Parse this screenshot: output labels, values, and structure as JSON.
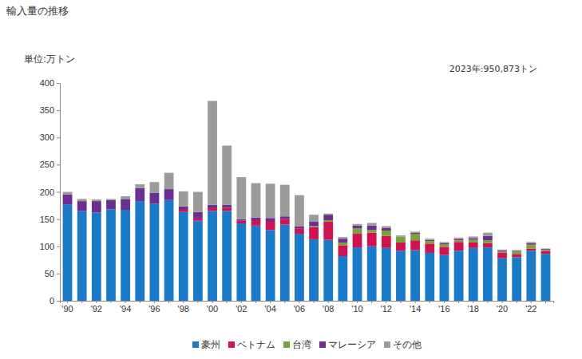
{
  "chart_data": {
    "type": "bar",
    "stacked": true,
    "title": "輸入量の推移",
    "y_label": "単位:万トン",
    "annotations": [
      "2023年:950,873トン"
    ],
    "categories": [
      "'90",
      null,
      "'92",
      null,
      "'94",
      null,
      "'96",
      null,
      "'98",
      null,
      "'00",
      null,
      "'02",
      null,
      "'04",
      null,
      "'06",
      null,
      "'08",
      null,
      "'10",
      null,
      "'12",
      null,
      "'14",
      null,
      "'16",
      null,
      "'18",
      null,
      "'20",
      null,
      "'22",
      null
    ],
    "series": [
      {
        "name": "豪州",
        "color": "#1a7ac8",
        "values": [
          177,
          165,
          162,
          168,
          167,
          183,
          178,
          185,
          163,
          147,
          165,
          165,
          142,
          138,
          130,
          140,
          123,
          113,
          112,
          82,
          98,
          100,
          97,
          92,
          93,
          88,
          84,
          92,
          97,
          98,
          78,
          80,
          92,
          86
        ]
      },
      {
        "name": "ベトナム",
        "color": "#d0134e",
        "values": [
          0,
          0,
          0,
          0,
          0,
          0,
          0,
          0,
          4,
          4,
          5,
          6,
          5,
          10,
          15,
          10,
          10,
          22,
          33,
          20,
          25,
          25,
          22,
          15,
          18,
          17,
          15,
          16,
          10,
          8,
          10,
          6,
          4,
          5
        ]
      },
      {
        "name": "台湾",
        "color": "#7aa23a",
        "values": [
          0,
          0,
          0,
          0,
          0,
          0,
          0,
          0,
          0,
          0,
          0,
          0,
          0,
          0,
          0,
          0,
          0,
          2,
          3,
          5,
          10,
          5,
          10,
          11,
          12,
          5,
          5,
          3,
          5,
          5,
          2,
          5,
          7,
          2
        ]
      },
      {
        "name": "マレーシア",
        "color": "#6c2f8f",
        "values": [
          18,
          18,
          21,
          17,
          20,
          24,
          20,
          20,
          6,
          12,
          6,
          5,
          3,
          5,
          7,
          5,
          4,
          8,
          10,
          7,
          5,
          8,
          5,
          0,
          2,
          2,
          2,
          2,
          3,
          8,
          2,
          1,
          3,
          2
        ]
      },
      {
        "name": "その他",
        "color": "#9b9b9b",
        "values": [
          5,
          4,
          3,
          2,
          5,
          7,
          20,
          30,
          28,
          37,
          191,
          109,
          77,
          63,
          63,
          58,
          57,
          13,
          2,
          3,
          3,
          5,
          3,
          2,
          2,
          2,
          2,
          3,
          3,
          6,
          2,
          1,
          2,
          1
        ]
      }
    ],
    "ylim": [
      0,
      400
    ],
    "yticks": [
      0,
      50,
      100,
      150,
      200,
      250,
      300,
      350,
      400
    ],
    "grid": false,
    "legend": "bottom"
  }
}
